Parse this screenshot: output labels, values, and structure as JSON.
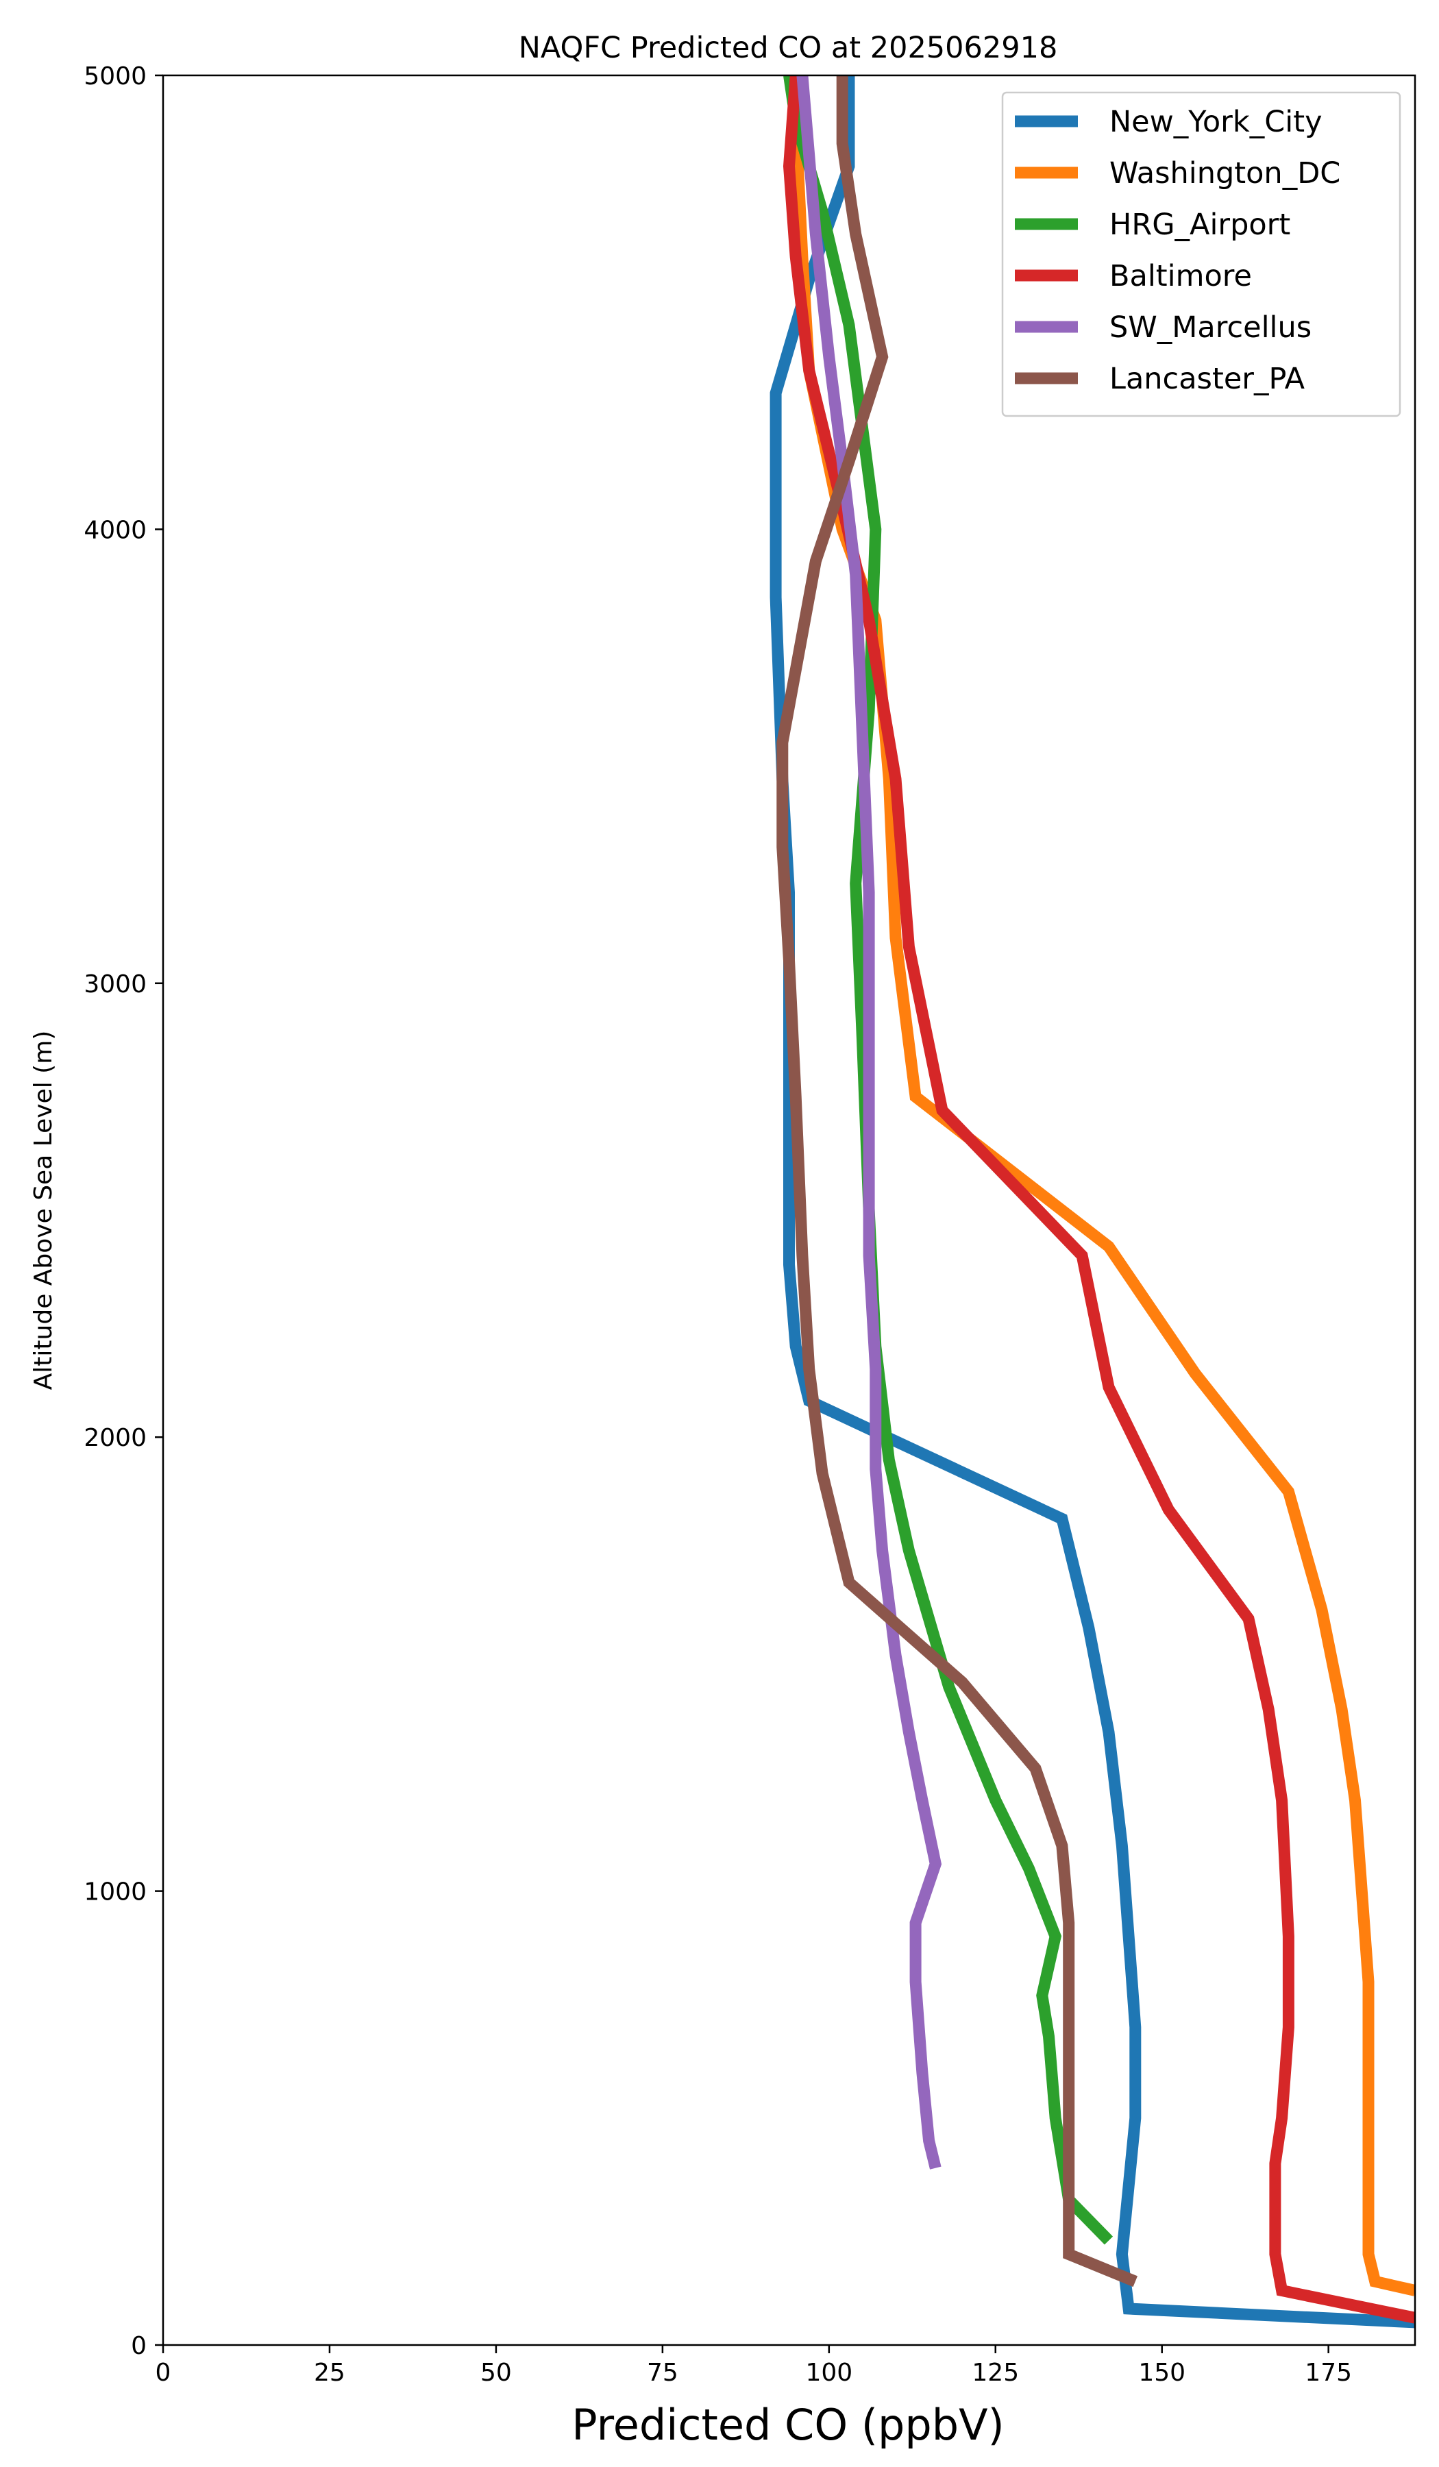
{
  "chart_data": {
    "type": "line",
    "title": "NAQFC Predicted CO at 2025062918",
    "xlabel": "Predicted CO (ppbV)",
    "ylabel": "Altitude Above Sea Level (m)",
    "xlim": [
      0,
      188
    ],
    "ylim": [
      0,
      5000
    ],
    "xticks": [
      0,
      25,
      50,
      75,
      100,
      125,
      150,
      175
    ],
    "yticks": [
      0,
      1000,
      2000,
      3000,
      4000,
      5000
    ],
    "grid": false,
    "legend_position": "upper right",
    "series": [
      {
        "name": "New_York_City",
        "color": "#1f77b4",
        "points": [
          [
            188,
            50
          ],
          [
            145,
            80
          ],
          [
            144,
            200
          ],
          [
            145,
            350
          ],
          [
            146,
            500
          ],
          [
            146,
            700
          ],
          [
            145,
            900
          ],
          [
            144,
            1100
          ],
          [
            142,
            1350
          ],
          [
            139,
            1580
          ],
          [
            135,
            1820
          ],
          [
            97,
            2080
          ],
          [
            95,
            2200
          ],
          [
            94,
            2380
          ],
          [
            94,
            2700
          ],
          [
            94,
            3000
          ],
          [
            94,
            3200
          ],
          [
            93,
            3450
          ],
          [
            92,
            3850
          ],
          [
            92,
            4300
          ],
          [
            97,
            4550
          ],
          [
            103,
            4800
          ],
          [
            103,
            5000
          ]
        ]
      },
      {
        "name": "Washington_DC",
        "color": "#ff7f0e",
        "points": [
          [
            188,
            120
          ],
          [
            182,
            140
          ],
          [
            181,
            200
          ],
          [
            181,
            400
          ],
          [
            181,
            600
          ],
          [
            181,
            800
          ],
          [
            180,
            1000
          ],
          [
            179,
            1200
          ],
          [
            177,
            1400
          ],
          [
            174,
            1620
          ],
          [
            169,
            1880
          ],
          [
            155,
            2140
          ],
          [
            142,
            2420
          ],
          [
            113,
            2750
          ],
          [
            110,
            3100
          ],
          [
            109,
            3450
          ],
          [
            107,
            3800
          ],
          [
            102,
            4000
          ],
          [
            97,
            4350
          ],
          [
            96,
            4600
          ],
          [
            95,
            4900
          ],
          [
            95,
            5000
          ]
        ]
      },
      {
        "name": "HRG_Airport",
        "color": "#2ca02c",
        "points": [
          [
            142,
            230
          ],
          [
            136,
            320
          ],
          [
            134,
            500
          ],
          [
            133,
            680
          ],
          [
            132,
            770
          ],
          [
            134,
            900
          ],
          [
            130,
            1050
          ],
          [
            125,
            1200
          ],
          [
            118,
            1450
          ],
          [
            112,
            1750
          ],
          [
            109,
            1950
          ],
          [
            107,
            2200
          ],
          [
            106,
            2500
          ],
          [
            105,
            2880
          ],
          [
            104,
            3220
          ],
          [
            106,
            3600
          ],
          [
            107,
            4000
          ],
          [
            103,
            4450
          ],
          [
            99,
            4700
          ],
          [
            95,
            4900
          ],
          [
            94,
            5000
          ]
        ]
      },
      {
        "name": "Baltimore",
        "color": "#d62728",
        "points": [
          [
            188,
            60
          ],
          [
            168,
            120
          ],
          [
            167,
            200
          ],
          [
            167,
            400
          ],
          [
            168,
            500
          ],
          [
            169,
            700
          ],
          [
            169,
            900
          ],
          [
            168,
            1200
          ],
          [
            166,
            1400
          ],
          [
            163,
            1600
          ],
          [
            151,
            1840
          ],
          [
            142,
            2110
          ],
          [
            138,
            2400
          ],
          [
            117,
            2720
          ],
          [
            112,
            3080
          ],
          [
            110,
            3450
          ],
          [
            106,
            3800
          ],
          [
            102,
            4050
          ],
          [
            97,
            4350
          ],
          [
            95,
            4600
          ],
          [
            94,
            4800
          ],
          [
            95,
            5000
          ]
        ]
      },
      {
        "name": "SW_Marcellus",
        "color": "#9467bd",
        "points": [
          [
            116,
            390
          ],
          [
            115,
            450
          ],
          [
            114,
            600
          ],
          [
            113,
            800
          ],
          [
            113,
            930
          ],
          [
            116,
            1060
          ],
          [
            114,
            1200
          ],
          [
            112,
            1350
          ],
          [
            110,
            1520
          ],
          [
            108,
            1750
          ],
          [
            107,
            1930
          ],
          [
            107,
            2150
          ],
          [
            106,
            2400
          ],
          [
            106,
            2800
          ],
          [
            106,
            3200
          ],
          [
            105,
            3550
          ],
          [
            104,
            3900
          ],
          [
            102,
            4150
          ],
          [
            100,
            4380
          ],
          [
            98,
            4650
          ],
          [
            96,
            5000
          ]
        ]
      },
      {
        "name": "Lancaster_PA",
        "color": "#8c564b",
        "points": [
          [
            146,
            140
          ],
          [
            136,
            200
          ],
          [
            136,
            300
          ],
          [
            136,
            500
          ],
          [
            136,
            700
          ],
          [
            136,
            930
          ],
          [
            135,
            1100
          ],
          [
            131,
            1270
          ],
          [
            120,
            1460
          ],
          [
            103,
            1680
          ],
          [
            99,
            1920
          ],
          [
            97,
            2150
          ],
          [
            96,
            2400
          ],
          [
            95,
            2750
          ],
          [
            94,
            3050
          ],
          [
            93,
            3300
          ],
          [
            93,
            3530
          ],
          [
            98,
            3930
          ],
          [
            103,
            4150
          ],
          [
            108,
            4380
          ],
          [
            104,
            4650
          ],
          [
            102,
            4850
          ],
          [
            102,
            5000
          ]
        ]
      }
    ]
  }
}
